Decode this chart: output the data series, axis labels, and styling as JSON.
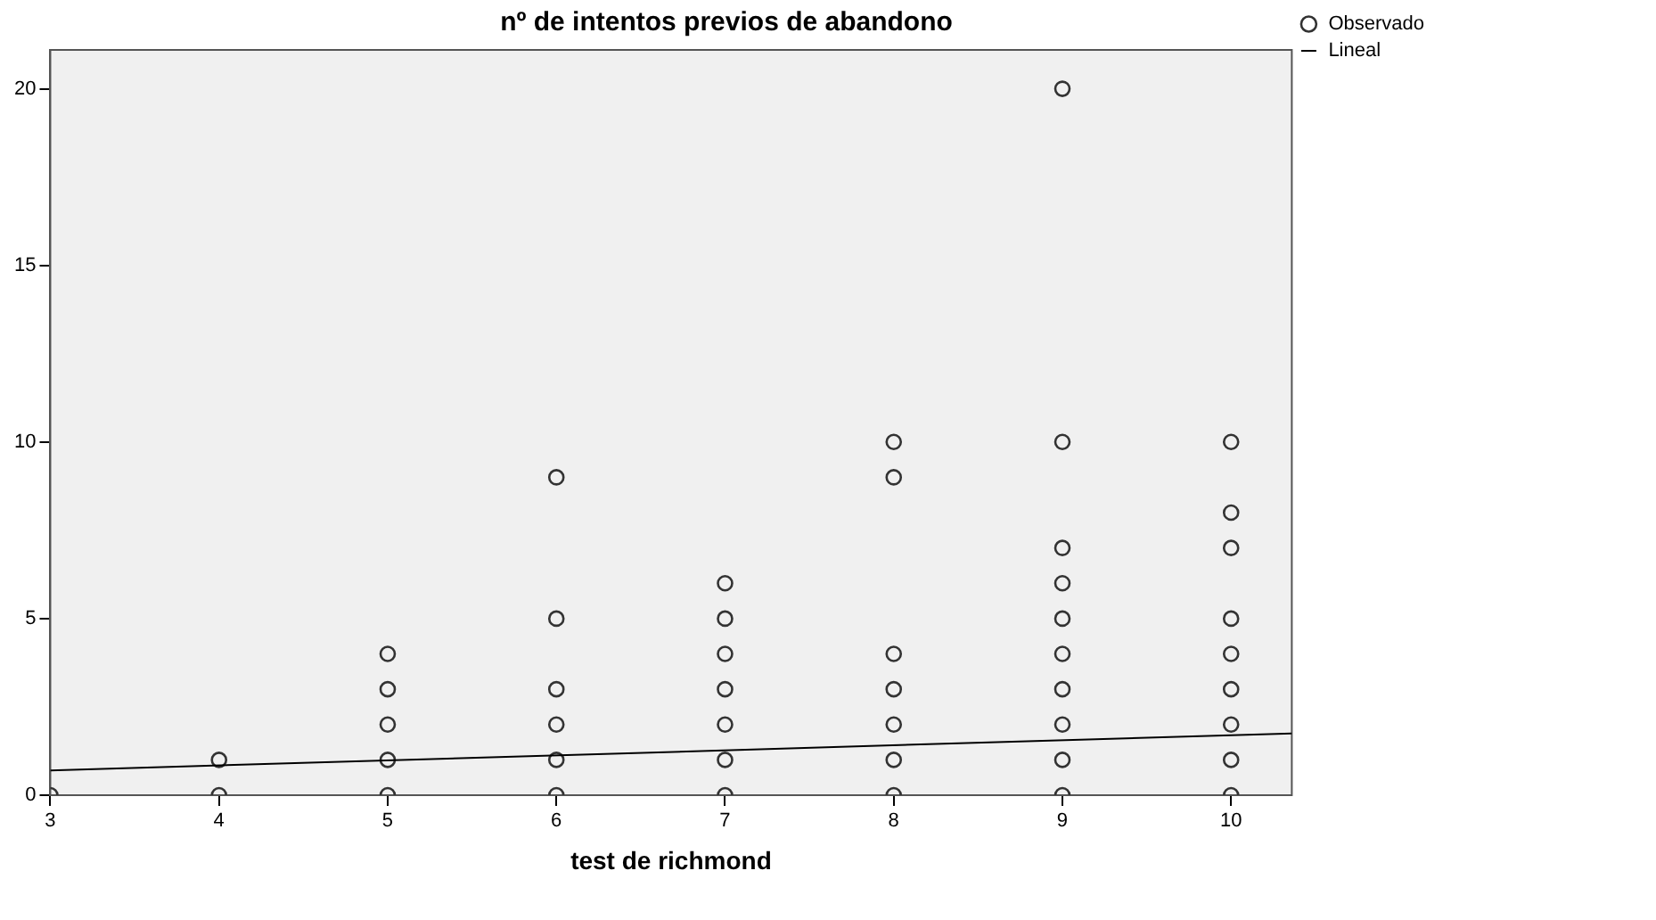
{
  "chart_data": {
    "type": "scatter",
    "title": "nº de intentos previos de abandono",
    "xlabel": "test de richmond",
    "xlim": [
      3,
      10.36
    ],
    "xticks": [
      3,
      4,
      5,
      6,
      7,
      8,
      9,
      10
    ],
    "ylim": [
      0,
      21.1
    ],
    "yticks": [
      0,
      5,
      10,
      15,
      20
    ],
    "grid": false,
    "legend": "top right",
    "series": [
      {
        "name": "Observado",
        "marker": "circle",
        "color": "#333333",
        "x": [
          3,
          4,
          4,
          5,
          5,
          5,
          5,
          5,
          6,
          6,
          6,
          6,
          6,
          6,
          7,
          7,
          7,
          7,
          7,
          7,
          7,
          8,
          8,
          8,
          8,
          8,
          8,
          8,
          9,
          9,
          9,
          9,
          9,
          9,
          9,
          9,
          9,
          9,
          10,
          10,
          10,
          10,
          10,
          10,
          10,
          10,
          10
        ],
        "values": [
          0,
          1,
          0,
          4,
          3,
          2,
          1,
          0,
          9,
          5,
          3,
          2,
          1,
          0,
          6,
          5,
          4,
          3,
          2,
          1,
          0,
          10,
          9,
          4,
          3,
          2,
          1,
          0,
          20,
          10,
          7,
          6,
          5,
          4,
          3,
          2,
          1,
          0,
          10,
          8,
          7,
          5,
          4,
          3,
          2,
          1,
          0
        ]
      },
      {
        "name": "Lineal",
        "type": "line",
        "color": "#000000",
        "x": [
          3,
          10.36
        ],
        "values": [
          0.7,
          1.75
        ]
      }
    ]
  }
}
